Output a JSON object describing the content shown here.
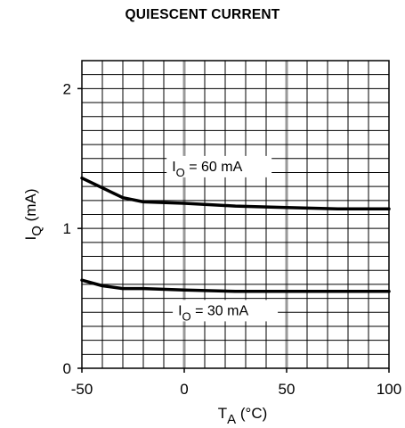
{
  "chart_data": {
    "type": "line",
    "title": "QUIESCENT CURRENT",
    "xlabel": {
      "main": "T",
      "sub": "A",
      "unit": " (°C)"
    },
    "ylabel": {
      "main": "I",
      "sub": "Q",
      "unit": " (mA)"
    },
    "xlim": [
      -50,
      100
    ],
    "ylim": [
      0,
      2.2
    ],
    "x_ticks": [
      -50,
      0,
      50,
      100
    ],
    "y_ticks": [
      0,
      1,
      2
    ],
    "x_tick_labels": [
      "-50",
      "0",
      "50",
      "100"
    ],
    "y_tick_labels": [
      "0",
      "1",
      "2"
    ],
    "grid": true,
    "series": [
      {
        "name": "IO = 60 mA",
        "label": {
          "main": "I",
          "sub": "O",
          "rest": " = 60 mA",
          "x": -6,
          "y": 1.41
        },
        "x": [
          -50,
          -40,
          -30,
          -20,
          0,
          25,
          50,
          75,
          100
        ],
        "y": [
          1.36,
          1.29,
          1.22,
          1.19,
          1.18,
          1.16,
          1.15,
          1.14,
          1.14
        ]
      },
      {
        "name": "IO = 30 mA",
        "label": {
          "main": "I",
          "sub": "O",
          "rest": " = 30 mA",
          "x": -3,
          "y": 0.38
        },
        "x": [
          -50,
          -40,
          -30,
          -20,
          0,
          25,
          50,
          75,
          100
        ],
        "y": [
          0.63,
          0.59,
          0.57,
          0.57,
          0.56,
          0.55,
          0.55,
          0.55,
          0.55
        ]
      }
    ]
  }
}
